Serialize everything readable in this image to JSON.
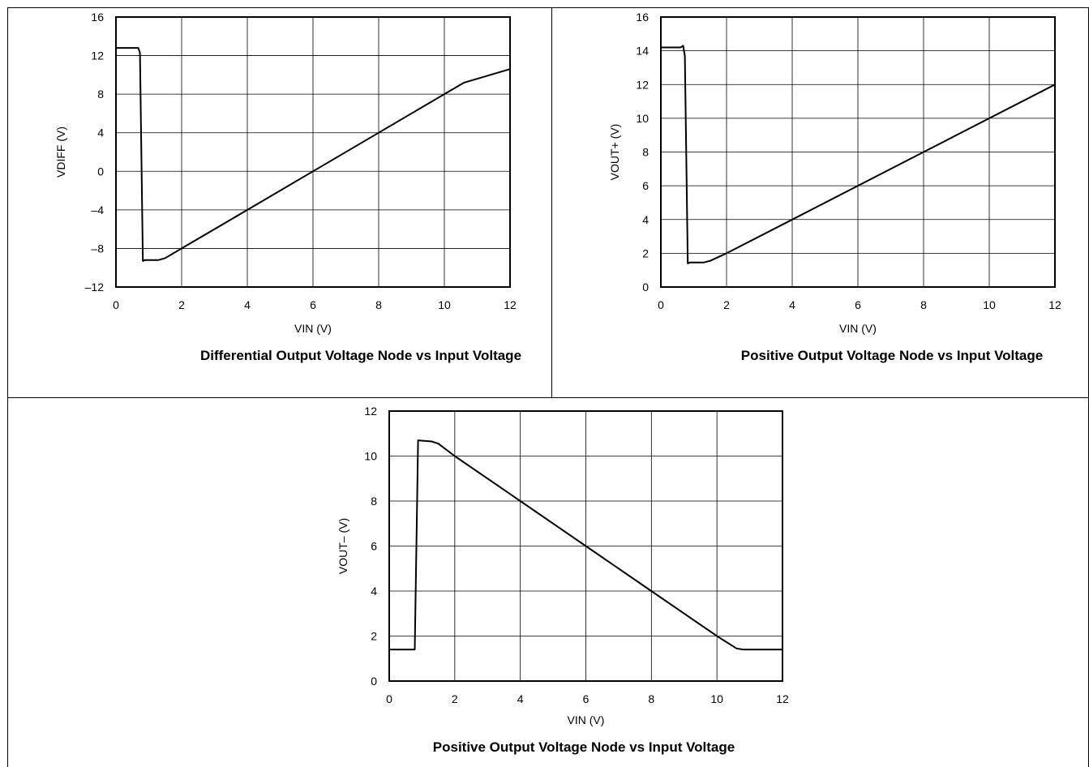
{
  "chart_data": [
    {
      "type": "line",
      "title": "Differential Output Voltage Node vs Input Voltage",
      "xlabel": "VIN (V)",
      "ylabel": "VDIFF (V)",
      "xlim": [
        0,
        12
      ],
      "ylim": [
        -12,
        16
      ],
      "xticks": [
        0,
        2,
        4,
        6,
        8,
        10,
        12
      ],
      "xtick_labels": [
        "0",
        "2",
        "4",
        "6",
        "8",
        "10",
        "12"
      ],
      "yticks": [
        -12,
        -8,
        -4,
        0,
        4,
        8,
        12,
        16
      ],
      "ytick_labels": [
        "–12",
        "–8",
        "–4",
        "0",
        "4",
        "8",
        "12",
        "16"
      ],
      "grid": true,
      "series": [
        {
          "x": [
            0,
            0.6,
            0.68,
            0.73,
            0.82,
            0.88,
            1.3,
            1.5,
            2.0,
            4.0,
            6.0,
            8.0,
            10.0,
            10.6,
            12.0
          ],
          "y": [
            12.8,
            12.8,
            12.8,
            12.3,
            -9.3,
            -9.2,
            -9.2,
            -9.0,
            -8.0,
            -4.0,
            0.0,
            4.0,
            8.0,
            9.2,
            10.6
          ]
        }
      ]
    },
    {
      "type": "line",
      "title": "Positive Output Voltage Node vs Input Voltage",
      "xlabel": "VIN (V)",
      "ylabel": "VOUT+ (V)",
      "xlim": [
        0,
        12
      ],
      "ylim": [
        0,
        16
      ],
      "xticks": [
        0,
        2,
        4,
        6,
        8,
        10,
        12
      ],
      "xtick_labels": [
        "0",
        "2",
        "4",
        "6",
        "8",
        "10",
        "12"
      ],
      "yticks": [
        0,
        2,
        4,
        6,
        8,
        10,
        12,
        14,
        16
      ],
      "ytick_labels": [
        "0",
        "2",
        "4",
        "6",
        "8",
        "10",
        "12",
        "14",
        "16"
      ],
      "grid": true,
      "series": [
        {
          "x": [
            0,
            0.6,
            0.68,
            0.73,
            0.82,
            0.88,
            1.3,
            1.5,
            2.0,
            4.0,
            6.0,
            8.0,
            10.0,
            12.0
          ],
          "y": [
            14.2,
            14.2,
            14.3,
            13.7,
            1.4,
            1.45,
            1.45,
            1.55,
            2.0,
            4.0,
            6.0,
            8.0,
            10.0,
            12.0
          ]
        }
      ]
    },
    {
      "type": "line",
      "title": "Positive Output Voltage Node vs Input Voltage",
      "xlabel": "VIN (V)",
      "ylabel": "VOUT– (V)",
      "xlim": [
        0,
        12
      ],
      "ylim": [
        0,
        12
      ],
      "xticks": [
        0,
        2,
        4,
        6,
        8,
        10,
        12
      ],
      "xtick_labels": [
        "0",
        "2",
        "4",
        "6",
        "8",
        "10",
        "12"
      ],
      "yticks": [
        0,
        2,
        4,
        6,
        8,
        10,
        12
      ],
      "ytick_labels": [
        "0",
        "2",
        "4",
        "6",
        "8",
        "10",
        "12"
      ],
      "grid": true,
      "series": [
        {
          "x": [
            0,
            0.6,
            0.7,
            0.78,
            0.88,
            1.3,
            1.5,
            2.0,
            4.0,
            6.0,
            8.0,
            10.0,
            10.6,
            10.8,
            12.0
          ],
          "y": [
            1.4,
            1.4,
            1.4,
            1.4,
            10.7,
            10.65,
            10.55,
            10.0,
            8.0,
            6.0,
            4.0,
            2.0,
            1.45,
            1.4,
            1.4
          ]
        }
      ]
    }
  ]
}
